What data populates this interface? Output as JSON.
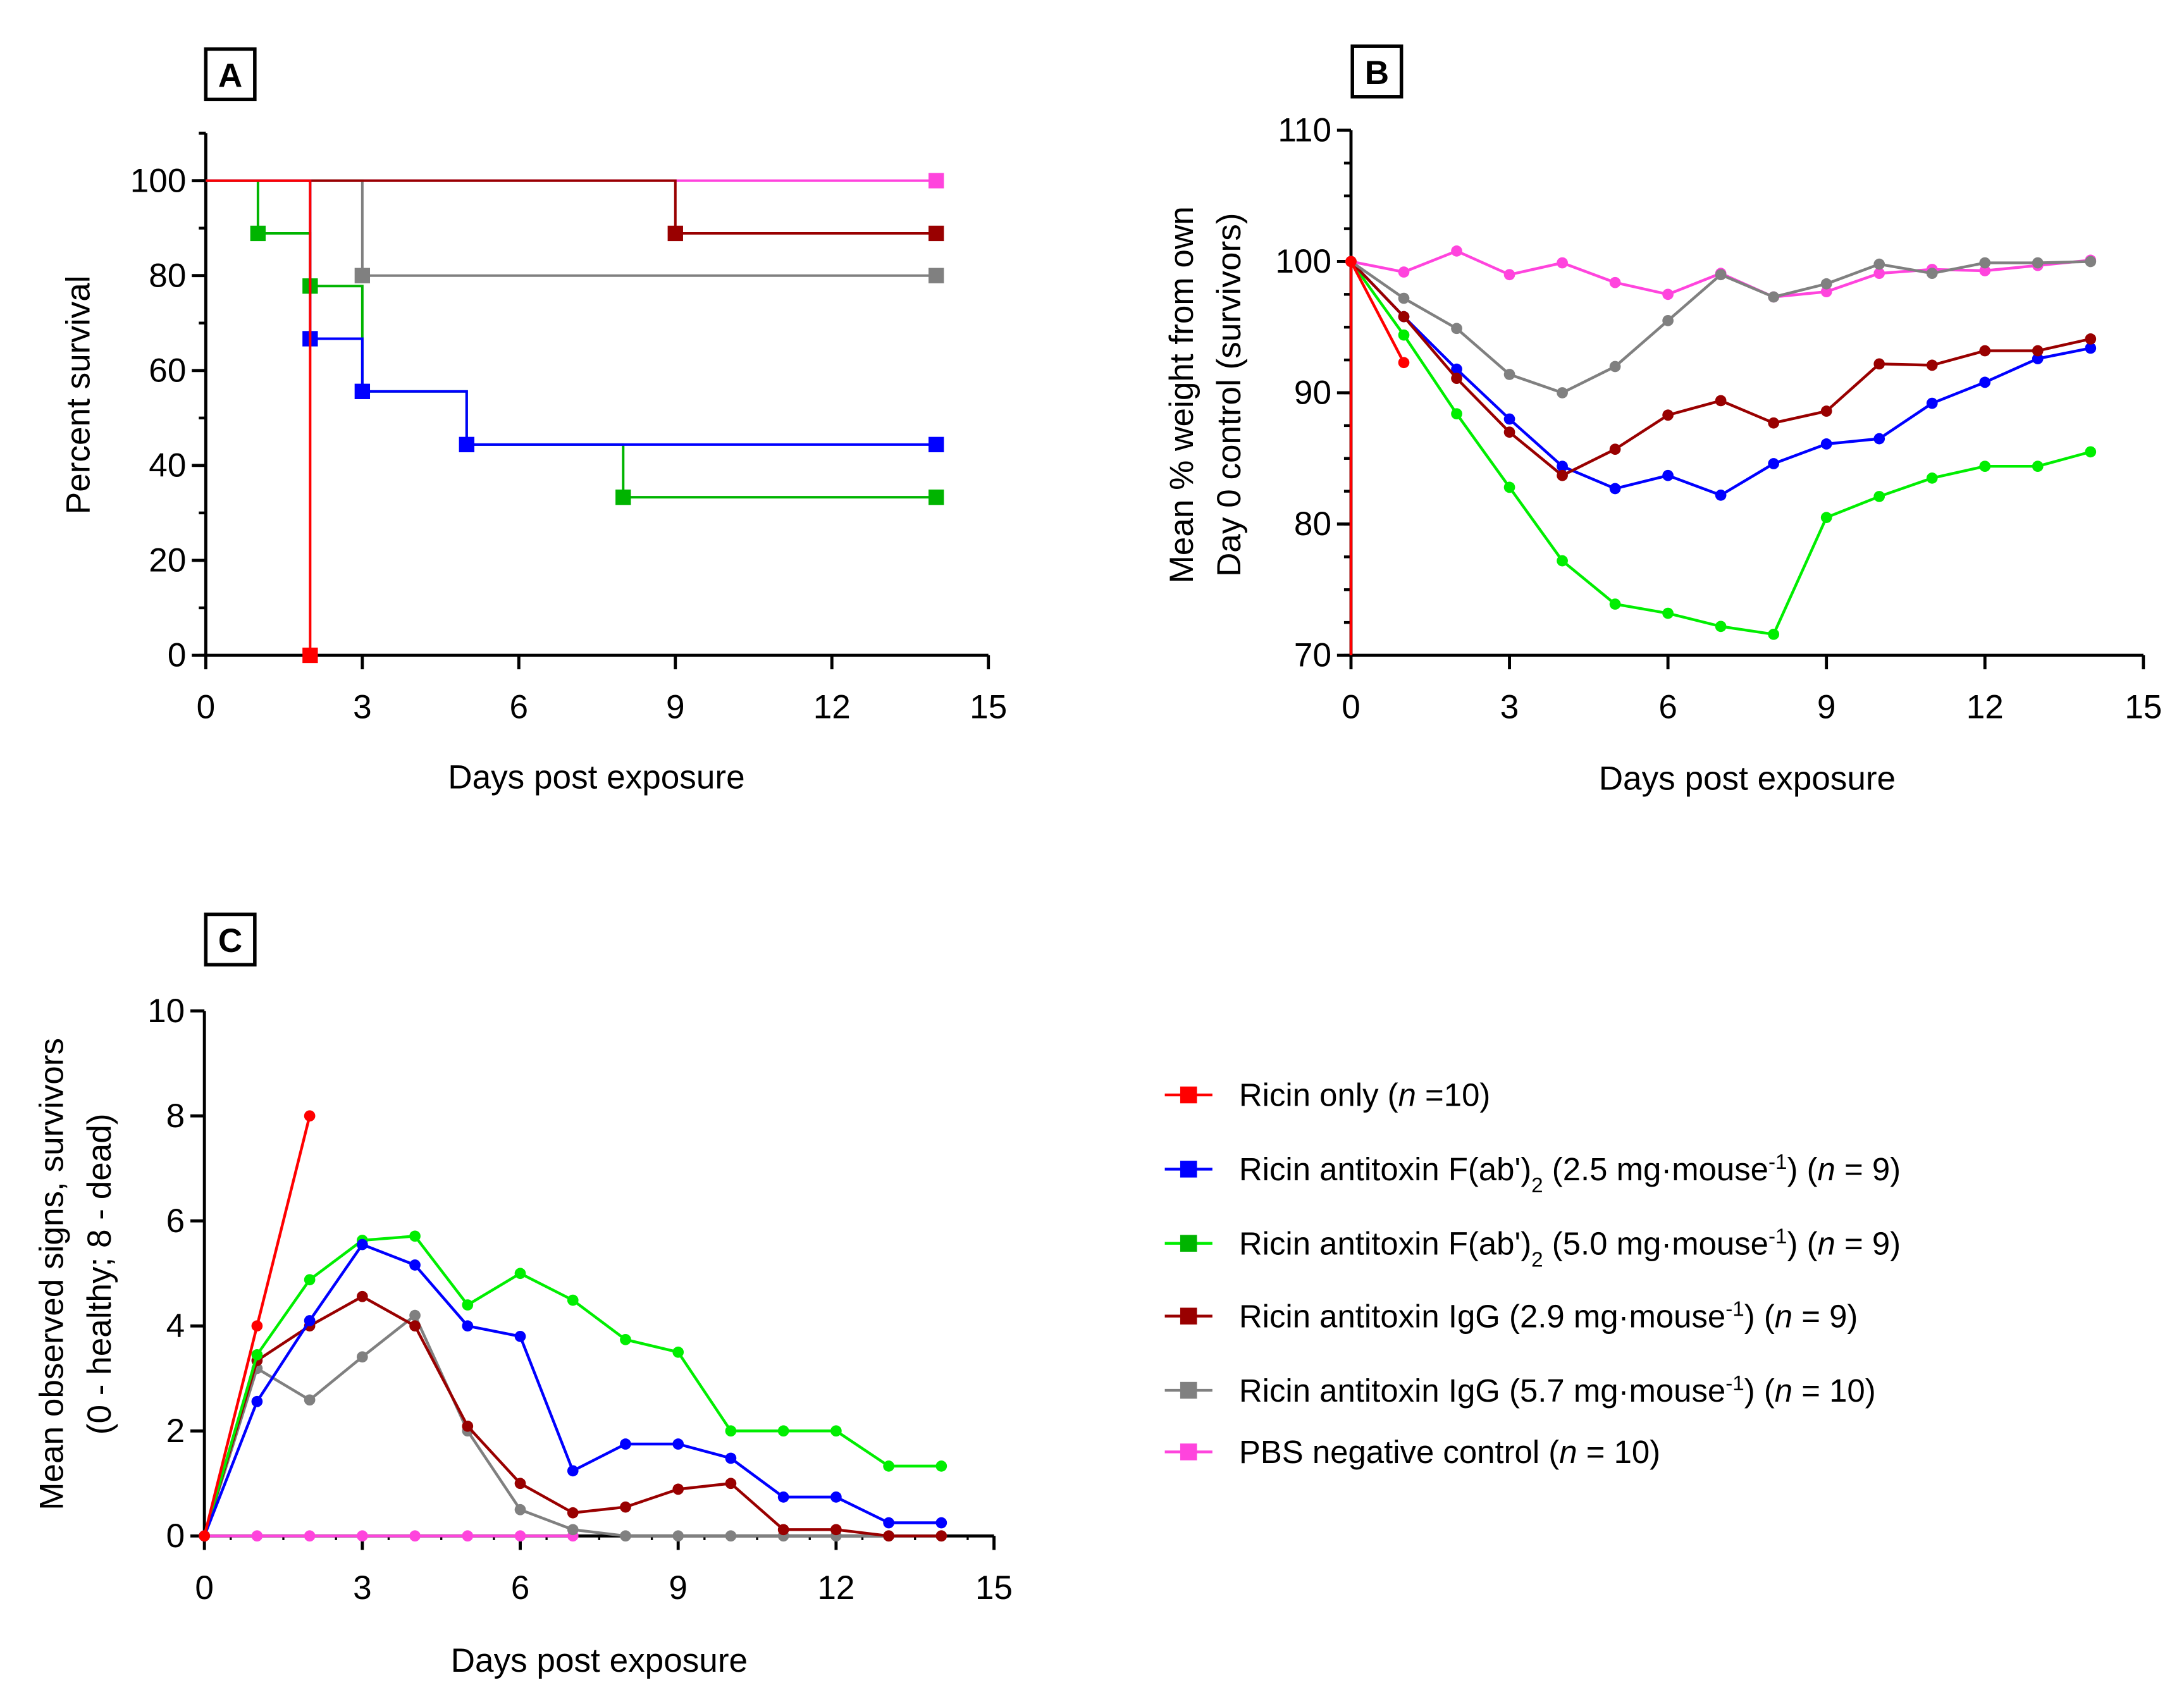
{
  "chart_data": [
    {
      "panel": "A",
      "type": "line",
      "step": true,
      "xlabel": "Days post exposure",
      "ylabel": "Percent survival",
      "xlim": [
        0,
        15
      ],
      "ylim": [
        0,
        100
      ],
      "xticks": [
        0,
        3,
        6,
        9,
        12,
        15
      ],
      "yticks": [
        0,
        20,
        40,
        60,
        80,
        100
      ],
      "series": [
        {
          "key": "pbs",
          "points": [
            [
              0,
              100
            ],
            [
              14,
              100
            ]
          ],
          "markers": [
            14
          ]
        },
        {
          "key": "igg57",
          "points": [
            [
              0,
              100
            ],
            [
              3,
              80
            ],
            [
              14,
              80
            ]
          ],
          "markers": [
            3,
            14
          ]
        },
        {
          "key": "igg29",
          "points": [
            [
              0,
              100
            ],
            [
              9,
              88.9
            ],
            [
              14,
              88.9
            ]
          ],
          "markers": [
            9,
            14
          ]
        },
        {
          "key": "fab50",
          "points": [
            [
              0,
              100
            ],
            [
              1,
              88.9
            ],
            [
              2,
              77.8
            ],
            [
              3,
              55.6
            ],
            [
              5,
              44.4
            ],
            [
              8,
              33.3
            ],
            [
              14,
              33.3
            ]
          ],
          "markers": [
            1,
            2,
            8,
            14
          ]
        },
        {
          "key": "fab25",
          "points": [
            [
              0,
              100
            ],
            [
              2,
              66.7
            ],
            [
              3,
              55.6
            ],
            [
              5,
              44.4
            ],
            [
              14,
              44.4
            ]
          ],
          "markers": [
            2,
            3,
            5,
            14
          ]
        },
        {
          "key": "ricin",
          "points": [
            [
              0,
              100
            ],
            [
              2,
              0
            ]
          ],
          "markers": [
            2
          ]
        }
      ]
    },
    {
      "panel": "B",
      "type": "line",
      "xlabel": "Days post exposure",
      "ylabel": [
        "Mean % weight from own",
        "Day 0 control (survivors)"
      ],
      "xlim": [
        0,
        15
      ],
      "ylim": [
        70,
        110
      ],
      "xticks": [
        0,
        3,
        6,
        9,
        12,
        15
      ],
      "yticks": [
        70,
        80,
        90,
        100,
        110
      ],
      "series": [
        {
          "key": "fab50",
          "values": [
            100,
            94.4,
            88.4,
            82.8,
            77.2,
            73.9,
            73.2,
            72.2,
            71.6,
            80.5,
            82.1,
            83.5,
            84.4,
            84.4,
            85.5
          ]
        },
        {
          "key": "fab25",
          "values": [
            100,
            95.8,
            91.8,
            88.0,
            84.4,
            82.7,
            83.7,
            82.2,
            84.6,
            86.1,
            86.5,
            89.2,
            90.8,
            92.6,
            93.4
          ]
        },
        {
          "key": "igg29",
          "values": [
            100,
            95.8,
            91.1,
            87.0,
            83.7,
            85.7,
            88.3,
            89.4,
            87.7,
            88.6,
            92.2,
            92.1,
            93.2,
            93.2,
            94.1
          ]
        },
        {
          "key": "pbs",
          "values": [
            100,
            99.2,
            100.8,
            99.0,
            99.9,
            98.4,
            97.5,
            99.1,
            97.3,
            97.7,
            99.1,
            99.4,
            99.3,
            99.7,
            100.1
          ]
        },
        {
          "key": "igg57",
          "values": [
            100,
            97.2,
            94.9,
            91.4,
            90.0,
            92.0,
            95.5,
            99.0,
            97.3,
            98.3,
            99.8,
            99.1,
            99.9,
            99.9,
            100
          ]
        },
        {
          "key": "ricin",
          "values": [
            100,
            92.3
          ],
          "drop_to_axis_at_day": 0
        }
      ]
    },
    {
      "panel": "C",
      "type": "line",
      "xlabel": "Days post exposure",
      "ylabel": [
        "Mean observed signs, survivors",
        "(0 - healthy; 8 - dead)"
      ],
      "xlim": [
        0,
        15
      ],
      "ylim": [
        0,
        10
      ],
      "xticks": [
        0,
        3,
        6,
        9,
        12,
        15
      ],
      "yticks": [
        0,
        2,
        4,
        6,
        8,
        10
      ],
      "series": [
        {
          "key": "pbs",
          "values": [
            0,
            0,
            0,
            0,
            0,
            0,
            0,
            0
          ]
        },
        {
          "key": "igg57",
          "values": [
            0,
            3.19,
            2.59,
            3.41,
            4.2,
            2.0,
            0.5,
            0.12,
            0,
            0,
            0,
            0,
            0,
            0,
            0
          ]
        },
        {
          "key": "igg29",
          "values": [
            0,
            3.34,
            4.0,
            4.56,
            4.0,
            2.09,
            1.0,
            0.44,
            0.55,
            0.89,
            1.0,
            0.12,
            0.12,
            0,
            0
          ]
        },
        {
          "key": "fab50",
          "values": [
            0,
            3.45,
            4.88,
            5.63,
            5.71,
            4.4,
            5.0,
            4.49,
            3.74,
            3.5,
            2.0,
            2.0,
            2.0,
            1.33,
            1.33
          ]
        },
        {
          "key": "fab25",
          "values": [
            0,
            2.56,
            4.1,
            5.55,
            5.16,
            4.0,
            3.8,
            1.24,
            1.75,
            1.75,
            1.48,
            0.74,
            0.74,
            0.25,
            0.25
          ]
        },
        {
          "key": "ricin",
          "values": [
            0,
            4.0,
            8.0
          ]
        }
      ]
    }
  ],
  "groups": {
    "ricin": {
      "color": "#ff0000",
      "colorA": "#ff0000",
      "legend": [
        {
          "t": "Ricin only ("
        },
        {
          "t": "n",
          "i": true
        },
        {
          "t": " =10)"
        }
      ]
    },
    "fab25": {
      "color": "#0000ff",
      "colorA": "#0000ff",
      "legend": [
        {
          "t": "Ricin antitoxin F(ab')"
        },
        {
          "t": "2",
          "sub": true
        },
        {
          "t": " (2.5 mg·mouse"
        },
        {
          "t": "-1",
          "sup": true
        },
        {
          "t": ") ("
        },
        {
          "t": "n",
          "i": true
        },
        {
          "t": " = 9)"
        }
      ]
    },
    "fab50": {
      "color": "#00ee00",
      "colorA": "#00b400",
      "legend": [
        {
          "t": "Ricin antitoxin F(ab')"
        },
        {
          "t": "2",
          "sub": true
        },
        {
          "t": " (5.0 mg·mouse"
        },
        {
          "t": "-1",
          "sup": true
        },
        {
          "t": ") ("
        },
        {
          "t": "n",
          "i": true
        },
        {
          "t": " = 9)"
        }
      ]
    },
    "igg29": {
      "color": "#990000",
      "colorA": "#990000",
      "legend": [
        {
          "t": "Ricin antitoxin IgG (2.9 mg·mouse"
        },
        {
          "t": "-1",
          "sup": true
        },
        {
          "t": ") ("
        },
        {
          "t": "n",
          "i": true
        },
        {
          "t": " = 9)"
        }
      ]
    },
    "igg57": {
      "color": "#808080",
      "colorA": "#808080",
      "legend": [
        {
          "t": "Ricin antitoxin IgG (5.7 mg·mouse"
        },
        {
          "t": "-1",
          "sup": true
        },
        {
          "t": ") ("
        },
        {
          "t": "n",
          "i": true
        },
        {
          "t": " = 10)"
        }
      ]
    },
    "pbs": {
      "color": "#ff44dd",
      "colorA": "#ff44dd",
      "legend": [
        {
          "t": "PBS negative control ("
        },
        {
          "t": "n",
          "i": true
        },
        {
          "t": " = 10)"
        }
      ]
    }
  },
  "legend_order": [
    "ricin",
    "fab25",
    "fab50",
    "igg29",
    "igg57",
    "pbs"
  ],
  "panel_letters": {
    "a": "A",
    "b": "B",
    "c": "C"
  }
}
